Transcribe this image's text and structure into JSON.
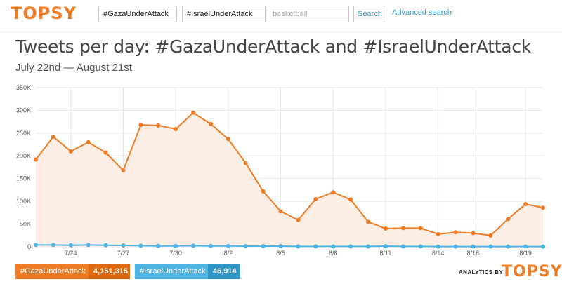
{
  "header": {
    "logo": "TOPSY",
    "query1": "#GazaUnderAttack",
    "query2": "#IsraelUnderAttack",
    "query3_placeholder": "basketball",
    "search_label": "Search",
    "advanced_label": "Advanced search"
  },
  "title": "Tweets per day: #GazaUnderAttack and #IsraelUnderAttack",
  "subtitle": "July 22nd — August 21st",
  "legend": [
    {
      "name": "#GazaUnderAttack",
      "count": "4,151,315"
    },
    {
      "name": "#IsraelUnderAttack",
      "count": "46,914"
    }
  ],
  "brand": {
    "prefix": "ANALYTICS BY",
    "logo": "TOPSY"
  },
  "colors": {
    "gaza": "#f07b25",
    "israel": "#4db4e3",
    "gaza_fill": "#fdeee5",
    "grid": "#e6e6e6"
  },
  "chart_data": {
    "type": "line",
    "x": [
      "7/22",
      "7/23",
      "7/24",
      "7/25",
      "7/26",
      "7/27",
      "7/28",
      "7/29",
      "7/30",
      "7/31",
      "8/1",
      "8/2",
      "8/3",
      "8/4",
      "8/5",
      "8/6",
      "8/7",
      "8/8",
      "8/9",
      "8/10",
      "8/11",
      "8/12",
      "8/13",
      "8/14",
      "8/15",
      "8/16",
      "8/17",
      "8/18",
      "8/19",
      "8/20"
    ],
    "x_tick_labels": [
      "7/24",
      "7/27",
      "7/30",
      "8/2",
      "8/5",
      "8/8",
      "8/11",
      "8/14",
      "8/16",
      "8/19"
    ],
    "y_tick_labels": [
      "0",
      "50K",
      "100K",
      "150K",
      "200K",
      "250K",
      "300K",
      "350K"
    ],
    "ylim": [
      0,
      350000
    ],
    "grid": true,
    "series": [
      {
        "name": "#GazaUnderAttack",
        "color": "#f07b25",
        "area": true,
        "values": [
          192000,
          242000,
          210000,
          230000,
          207000,
          168000,
          268000,
          267000,
          259000,
          295000,
          270000,
          237000,
          184000,
          122000,
          78000,
          59000,
          105000,
          120000,
          104000,
          55000,
          40000,
          41000,
          41000,
          28000,
          32000,
          30000,
          25000,
          61000,
          94000,
          86000
        ]
      },
      {
        "name": "#IsraelUnderAttack",
        "color": "#4db4e3",
        "area": false,
        "values": [
          4000,
          4000,
          3500,
          4000,
          3500,
          3000,
          2500,
          2000,
          2000,
          2500,
          2000,
          2000,
          1500,
          1500,
          1500,
          1000,
          1000,
          1000,
          1000,
          1000,
          1500,
          1000,
          1000,
          500,
          500,
          500,
          500,
          500,
          500,
          500
        ]
      }
    ]
  }
}
